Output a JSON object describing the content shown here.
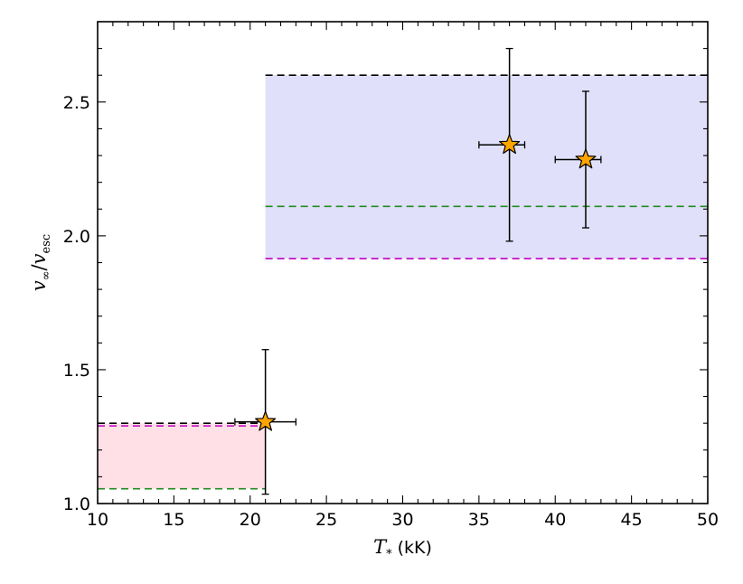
{
  "chart_data": {
    "type": "scatter",
    "xlabel_symbol": "T",
    "xlabel_sub": "*",
    "xlabel_unit": "(kK)",
    "ylabel_num": "v",
    "ylabel_num_sub": "∞",
    "ylabel_sep": "/",
    "ylabel_den": "v",
    "ylabel_den_sub": "esc",
    "xlim": [
      10,
      50
    ],
    "ylim": [
      1.0,
      2.8
    ],
    "xticks": [
      10,
      15,
      20,
      25,
      30,
      35,
      40,
      45,
      50
    ],
    "xtick_labels": [
      "10",
      "15",
      "20",
      "25",
      "30",
      "35",
      "40",
      "45",
      "50"
    ],
    "yticks": [
      1.0,
      1.5,
      2.0,
      2.5
    ],
    "ytick_labels": [
      "1.0",
      "1.5",
      "2.0",
      "2.5"
    ],
    "x_minor_step": 1,
    "y_minor_step": 0.1,
    "grid": false,
    "points": [
      {
        "x": 21,
        "y": 1.305,
        "xerr": [
          2,
          2
        ],
        "yerr": [
          0.27,
          0.27
        ]
      },
      {
        "x": 37,
        "y": 2.34,
        "xerr": [
          2,
          1
        ],
        "yerr": [
          0.36,
          0.36
        ]
      },
      {
        "x": 42,
        "y": 2.285,
        "xerr": [
          2,
          1
        ],
        "yerr": [
          0.255,
          0.255
        ]
      }
    ],
    "marker": {
      "shape": "star",
      "color": "#FFA500",
      "edge": "#000000"
    },
    "regions": [
      {
        "x": [
          10,
          21
        ],
        "y": [
          1.055,
          1.3
        ],
        "fill": "#FFE0E6"
      },
      {
        "x": [
          21,
          50
        ],
        "y": [
          1.915,
          2.6
        ],
        "fill": "#E0E0FA"
      }
    ],
    "hlines": [
      {
        "x": [
          10,
          21
        ],
        "y": 1.3,
        "color": "#000000"
      },
      {
        "x": [
          10,
          21
        ],
        "y": 1.29,
        "color": "#BF00BF"
      },
      {
        "x": [
          10,
          21
        ],
        "y": 1.055,
        "color": "#228B22"
      },
      {
        "x": [
          21,
          50
        ],
        "y": 2.6,
        "color": "#000000"
      },
      {
        "x": [
          21,
          50
        ],
        "y": 2.11,
        "color": "#228B22"
      },
      {
        "x": [
          21,
          50
        ],
        "y": 1.915,
        "color": "#BF00BF"
      }
    ]
  }
}
